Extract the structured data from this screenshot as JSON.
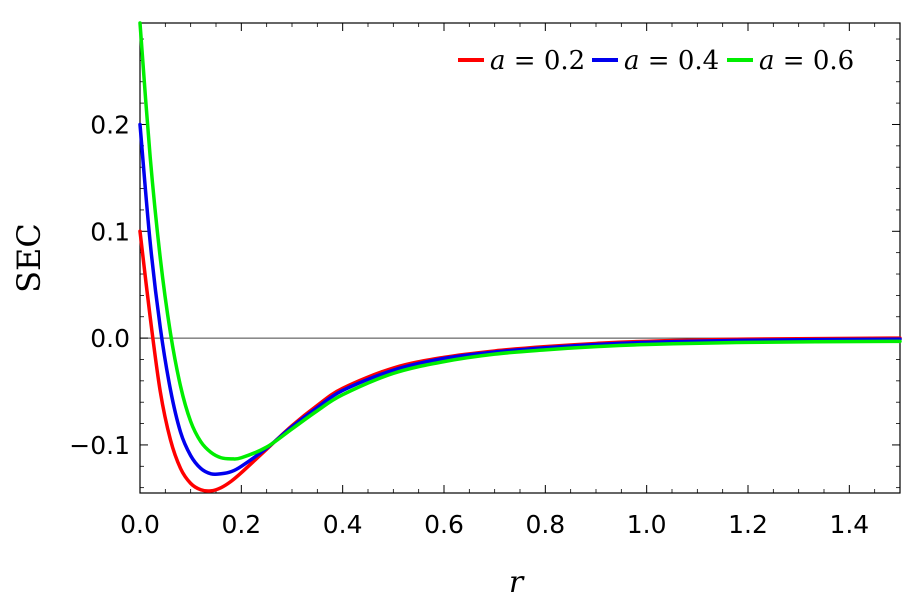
{
  "chart_data": {
    "type": "line",
    "title": "",
    "xlabel": "r",
    "ylabel": "SEC",
    "xlim": [
      0.0,
      1.5
    ],
    "ylim": [
      -0.145,
      0.295
    ],
    "x_ticks": [
      "0.0",
      "0.2",
      "0.4",
      "0.6",
      "0.8",
      "1.0",
      "1.2",
      "1.4"
    ],
    "x_tick_values": [
      0.0,
      0.2,
      0.4,
      0.6,
      0.8,
      1.0,
      1.2,
      1.4
    ],
    "y_ticks": [
      "−0.1",
      "0.0",
      "0.1",
      "0.2"
    ],
    "y_tick_values": [
      -0.1,
      0.0,
      0.1,
      0.2
    ],
    "grid": false,
    "zero_line": true,
    "legend_position": "top-right",
    "series": [
      {
        "name": "a = 0.2",
        "legend_var": "a",
        "legend_value": "0.2",
        "color": "#ff0000",
        "x": [
          0.0,
          0.02,
          0.04,
          0.06,
          0.08,
          0.1,
          0.12,
          0.14,
          0.16,
          0.18,
          0.2,
          0.25,
          0.3,
          0.35,
          0.4,
          0.5,
          0.6,
          0.7,
          0.8,
          0.9,
          1.0,
          1.2,
          1.5
        ],
        "y": [
          0.1,
          0.02,
          -0.05,
          -0.095,
          -0.122,
          -0.136,
          -0.142,
          -0.143,
          -0.14,
          -0.134,
          -0.126,
          -0.104,
          -0.082,
          -0.063,
          -0.047,
          -0.028,
          -0.018,
          -0.012,
          -0.008,
          -0.005,
          -0.003,
          -0.001,
          0.0
        ]
      },
      {
        "name": "a = 0.4",
        "legend_var": "a",
        "legend_value": "0.4",
        "color": "#0000ee",
        "x": [
          0.0,
          0.02,
          0.04,
          0.06,
          0.08,
          0.1,
          0.12,
          0.14,
          0.16,
          0.18,
          0.2,
          0.25,
          0.3,
          0.35,
          0.4,
          0.5,
          0.6,
          0.7,
          0.8,
          0.9,
          1.0,
          1.2,
          1.5
        ],
        "y": [
          0.2,
          0.09,
          0.01,
          -0.048,
          -0.088,
          -0.11,
          -0.122,
          -0.127,
          -0.127,
          -0.125,
          -0.12,
          -0.103,
          -0.083,
          -0.065,
          -0.049,
          -0.03,
          -0.019,
          -0.013,
          -0.009,
          -0.006,
          -0.004,
          -0.002,
          -0.001
        ]
      },
      {
        "name": "a = 0.6",
        "legend_var": "a",
        "legend_value": "0.6",
        "color": "#00ee00",
        "x": [
          0.0,
          0.02,
          0.04,
          0.06,
          0.08,
          0.1,
          0.12,
          0.14,
          0.16,
          0.18,
          0.2,
          0.25,
          0.3,
          0.35,
          0.4,
          0.5,
          0.6,
          0.7,
          0.8,
          0.9,
          1.0,
          1.2,
          1.5
        ],
        "y": [
          0.295,
          0.17,
          0.075,
          0.005,
          -0.045,
          -0.078,
          -0.097,
          -0.107,
          -0.112,
          -0.113,
          -0.112,
          -0.102,
          -0.085,
          -0.068,
          -0.053,
          -0.033,
          -0.022,
          -0.015,
          -0.011,
          -0.008,
          -0.006,
          -0.004,
          -0.003
        ]
      }
    ]
  }
}
